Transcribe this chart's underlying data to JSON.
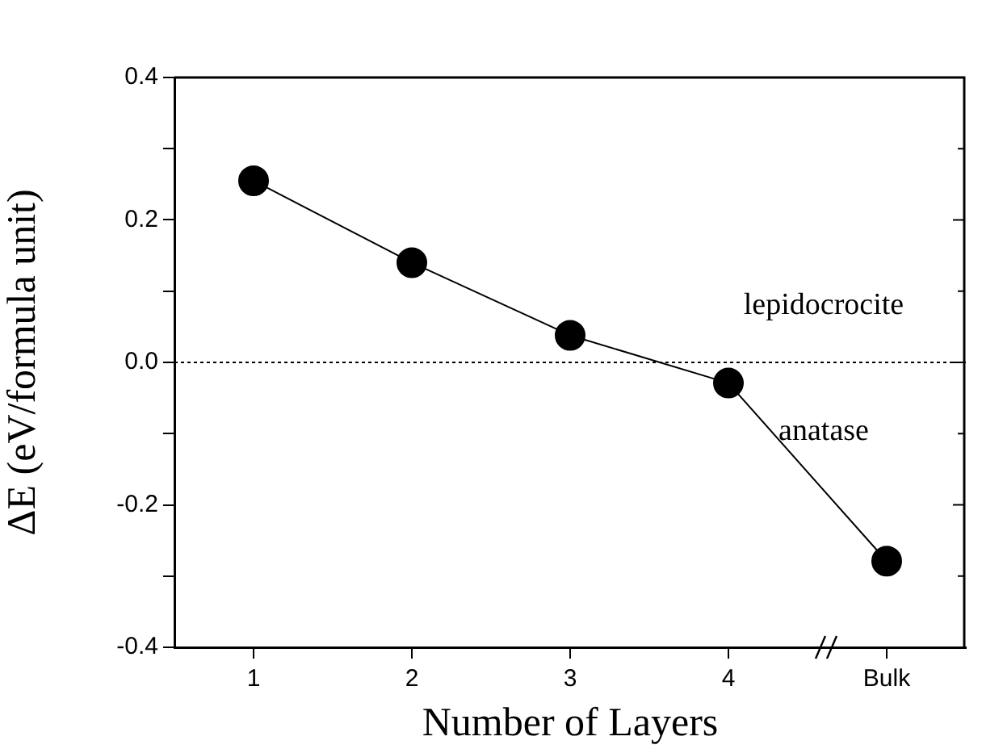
{
  "chart_data": {
    "type": "line",
    "xlabel": "Number of Layers",
    "ylabel": "ΔE (eV/formula unit)",
    "categories": [
      "1",
      "2",
      "3",
      "4",
      "Bulk"
    ],
    "series": [
      {
        "color": "#000000",
        "values": [
          0.255,
          0.14,
          0.038,
          -0.029,
          -0.279
        ]
      }
    ],
    "ylim": [
      -0.4,
      0.4
    ],
    "yticks": [
      -0.4,
      {
        "value": -0.3,
        "label": null
      },
      -0.2,
      {
        "value": -0.1,
        "label": null
      },
      {
        "value": 0,
        "label": "0.0"
      },
      {
        "value": 0.1,
        "label": null
      },
      0.2,
      {
        "value": 0.3,
        "label": null
      },
      0.4
    ],
    "ref_lines": [
      {
        "axis": "y",
        "value": 0,
        "line_style": "dotted",
        "color": "#000000"
      }
    ],
    "annotations": [
      "lepidocrocite",
      "anatase"
    ],
    "marker": "circle",
    "line_style": "solid",
    "grid": false,
    "legend": false
  }
}
